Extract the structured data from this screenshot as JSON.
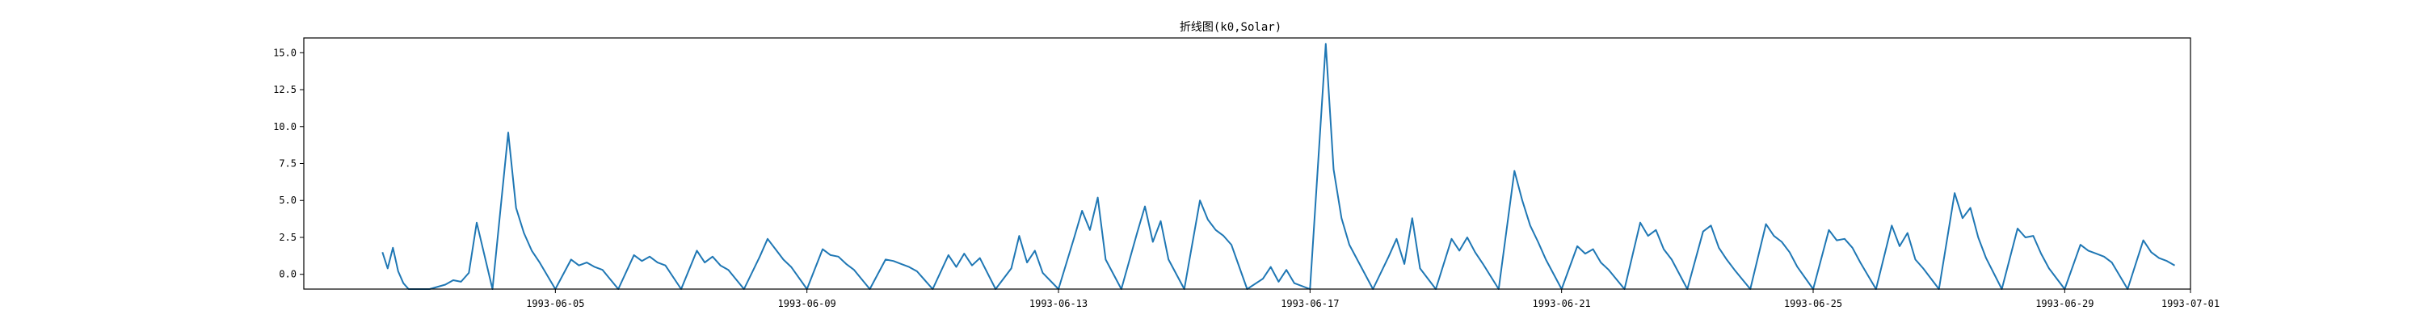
{
  "chart_data": {
    "type": "line",
    "title": "折线图(k0,Solar)",
    "xlabel": "",
    "ylabel": "",
    "xlim": [
      "1993-06-01",
      "1993-07-01"
    ],
    "ylim": [
      -1.0,
      16.0
    ],
    "grid": false,
    "series_color": "#1f77b4",
    "x_ticks": [
      {
        "date": "1993-06-05",
        "label": "1993-06-05"
      },
      {
        "date": "1993-06-09",
        "label": "1993-06-09"
      },
      {
        "date": "1993-06-13",
        "label": "1993-06-13"
      },
      {
        "date": "1993-06-17",
        "label": "1993-06-17"
      },
      {
        "date": "1993-06-21",
        "label": "1993-06-21"
      },
      {
        "date": "1993-06-25",
        "label": "1993-06-25"
      },
      {
        "date": "1993-06-29",
        "label": "1993-06-29"
      },
      {
        "date": "1993-07-01",
        "label": "1993-07-01"
      }
    ],
    "y_ticks": [
      {
        "value": 0.0,
        "label": "0.0"
      },
      {
        "value": 2.5,
        "label": "2.5"
      },
      {
        "value": 5.0,
        "label": "5.0"
      },
      {
        "value": 7.5,
        "label": "7.5"
      },
      {
        "value": 10.0,
        "label": "10.0"
      },
      {
        "value": 12.5,
        "label": "12.5"
      },
      {
        "value": 15.0,
        "label": "15.0"
      }
    ],
    "series": [
      {
        "x": [
          "1993-06-02 06:00",
          "1993-06-02 08:00",
          "1993-06-02 10:00",
          "1993-06-02 12:00",
          "1993-06-02 14:00",
          "1993-06-02 16:00",
          "1993-06-02 18:00",
          "1993-06-03 00:00",
          "1993-06-03 06:00",
          "1993-06-03 09:00",
          "1993-06-03 12:00",
          "1993-06-03 15:00",
          "1993-06-03 18:00",
          "1993-06-04 00:00",
          "1993-06-04 06:00",
          "1993-06-04 09:00",
          "1993-06-04 12:00",
          "1993-06-04 15:00",
          "1993-06-04 18:00",
          "1993-06-05 00:00",
          "1993-06-05 06:00",
          "1993-06-05 09:00",
          "1993-06-05 12:00",
          "1993-06-05 15:00",
          "1993-06-05 18:00",
          "1993-06-06 00:00",
          "1993-06-06 06:00",
          "1993-06-06 09:00",
          "1993-06-06 12:00",
          "1993-06-06 15:00",
          "1993-06-06 18:00",
          "1993-06-07 00:00",
          "1993-06-07 06:00",
          "1993-06-07 09:00",
          "1993-06-07 12:00",
          "1993-06-07 15:00",
          "1993-06-07 18:00",
          "1993-06-08 00:00",
          "1993-06-08 06:00",
          "1993-06-08 09:00",
          "1993-06-08 12:00",
          "1993-06-08 15:00",
          "1993-06-08 18:00",
          "1993-06-09 00:00",
          "1993-06-09 06:00",
          "1993-06-09 09:00",
          "1993-06-09 12:00",
          "1993-06-09 15:00",
          "1993-06-09 18:00",
          "1993-06-10 00:00",
          "1993-06-10 06:00",
          "1993-06-10 09:00",
          "1993-06-10 12:00",
          "1993-06-10 15:00",
          "1993-06-10 18:00",
          "1993-06-11 00:00",
          "1993-06-11 06:00",
          "1993-06-11 09:00",
          "1993-06-11 12:00",
          "1993-06-11 15:00",
          "1993-06-11 18:00",
          "1993-06-12 00:00",
          "1993-06-12 06:00",
          "1993-06-12 09:00",
          "1993-06-12 12:00",
          "1993-06-12 15:00",
          "1993-06-12 18:00",
          "1993-06-13 00:00",
          "1993-06-13 06:00",
          "1993-06-13 09:00",
          "1993-06-13 12:00",
          "1993-06-13 15:00",
          "1993-06-13 18:00",
          "1993-06-14 00:00",
          "1993-06-14 06:00",
          "1993-06-14 09:00",
          "1993-06-14 12:00",
          "1993-06-14 15:00",
          "1993-06-14 18:00",
          "1993-06-15 00:00",
          "1993-06-15 06:00",
          "1993-06-15 09:00",
          "1993-06-15 12:00",
          "1993-06-15 15:00",
          "1993-06-15 18:00",
          "1993-06-16 00:00",
          "1993-06-16 06:00",
          "1993-06-16 09:00",
          "1993-06-16 12:00",
          "1993-06-16 15:00",
          "1993-06-16 18:00",
          "1993-06-17 00:00",
          "1993-06-17 06:00",
          "1993-06-17 09:00",
          "1993-06-17 12:00",
          "1993-06-17 15:00",
          "1993-06-17 18:00",
          "1993-06-18 00:00",
          "1993-06-18 06:00",
          "1993-06-18 09:00",
          "1993-06-18 12:00",
          "1993-06-18 15:00",
          "1993-06-18 18:00",
          "1993-06-19 00:00",
          "1993-06-19 06:00",
          "1993-06-19 09:00",
          "1993-06-19 12:00",
          "1993-06-19 15:00",
          "1993-06-19 18:00",
          "1993-06-20 00:00",
          "1993-06-20 06:00",
          "1993-06-20 09:00",
          "1993-06-20 12:00",
          "1993-06-20 15:00",
          "1993-06-20 18:00",
          "1993-06-21 00:00",
          "1993-06-21 06:00",
          "1993-06-21 09:00",
          "1993-06-21 12:00",
          "1993-06-21 15:00",
          "1993-06-21 18:00",
          "1993-06-22 00:00",
          "1993-06-22 06:00",
          "1993-06-22 09:00",
          "1993-06-22 12:00",
          "1993-06-22 15:00",
          "1993-06-22 18:00",
          "1993-06-23 00:00",
          "1993-06-23 06:00",
          "1993-06-23 09:00",
          "1993-06-23 12:00",
          "1993-06-23 15:00",
          "1993-06-23 18:00",
          "1993-06-24 00:00",
          "1993-06-24 06:00",
          "1993-06-24 09:00",
          "1993-06-24 12:00",
          "1993-06-24 15:00",
          "1993-06-24 18:00",
          "1993-06-25 00:00",
          "1993-06-25 06:00",
          "1993-06-25 09:00",
          "1993-06-25 12:00",
          "1993-06-25 15:00",
          "1993-06-25 18:00",
          "1993-06-26 00:00",
          "1993-06-26 06:00",
          "1993-06-26 09:00",
          "1993-06-26 12:00",
          "1993-06-26 15:00",
          "1993-06-26 18:00",
          "1993-06-27 00:00",
          "1993-06-27 06:00",
          "1993-06-27 09:00",
          "1993-06-27 12:00",
          "1993-06-27 15:00",
          "1993-06-27 18:00",
          "1993-06-28 00:00",
          "1993-06-28 06:00",
          "1993-06-28 09:00",
          "1993-06-28 12:00",
          "1993-06-28 15:00",
          "1993-06-28 18:00",
          "1993-06-29 00:00",
          "1993-06-29 06:00",
          "1993-06-29 09:00",
          "1993-06-29 12:00",
          "1993-06-29 15:00",
          "1993-06-29 18:00",
          "1993-06-30 00:00",
          "1993-06-30 06:00",
          "1993-06-30 09:00",
          "1993-06-30 12:00",
          "1993-06-30 15:00",
          "1993-06-30 18:00"
        ],
        "y": [
          1.5,
          0.4,
          1.8,
          0.2,
          -0.6,
          -1.0,
          -1.0,
          -1.0,
          -0.7,
          -0.4,
          -0.5,
          0.1,
          3.5,
          -1.0,
          9.6,
          4.5,
          2.8,
          1.6,
          0.8,
          -1.0,
          1.0,
          0.6,
          0.8,
          0.5,
          0.3,
          -1.0,
          1.3,
          0.9,
          1.2,
          0.8,
          0.6,
          -1.0,
          1.6,
          0.8,
          1.2,
          0.6,
          0.3,
          -1.0,
          1.2,
          2.4,
          1.7,
          1.0,
          0.5,
          -1.0,
          1.7,
          1.3,
          1.2,
          0.7,
          0.3,
          -1.0,
          1.0,
          0.9,
          0.7,
          0.5,
          0.2,
          -1.0,
          1.3,
          0.5,
          1.4,
          0.6,
          1.1,
          -1.0,
          0.4,
          2.6,
          0.8,
          1.6,
          0.1,
          -1.0,
          2.5,
          4.3,
          3.0,
          5.2,
          1.0,
          -1.0,
          2.8,
          4.6,
          2.2,
          3.6,
          1.0,
          -1.0,
          5.0,
          3.7,
          3.0,
          2.6,
          2.0,
          -1.0,
          -0.3,
          0.5,
          -0.5,
          0.3,
          -0.6,
          -1.0,
          15.6,
          7.1,
          3.8,
          2.0,
          1.0,
          -1.0,
          1.2,
          2.4,
          0.7,
          3.8,
          0.4,
          -1.0,
          2.4,
          1.6,
          2.5,
          1.5,
          0.7,
          -1.0,
          7.0,
          5.0,
          3.3,
          2.2,
          1.0,
          -1.0,
          1.9,
          1.4,
          1.7,
          0.8,
          0.3,
          -1.0,
          3.5,
          2.6,
          3.0,
          1.7,
          1.0,
          -1.0,
          2.9,
          3.3,
          1.8,
          1.0,
          0.3,
          -1.0,
          3.4,
          2.6,
          2.2,
          1.5,
          0.5,
          -1.0,
          3.0,
          2.3,
          2.4,
          1.8,
          0.8,
          -1.0,
          3.3,
          1.9,
          2.8,
          1.0,
          0.4,
          -1.0,
          5.5,
          3.8,
          4.5,
          2.5,
          1.1,
          -1.0,
          3.1,
          2.5,
          2.6,
          1.4,
          0.4,
          -1.0,
          2.0,
          1.6,
          1.4,
          1.2,
          0.8,
          -1.0,
          2.3,
          1.5,
          1.1,
          0.9,
          0.6
        ]
      }
    ]
  }
}
